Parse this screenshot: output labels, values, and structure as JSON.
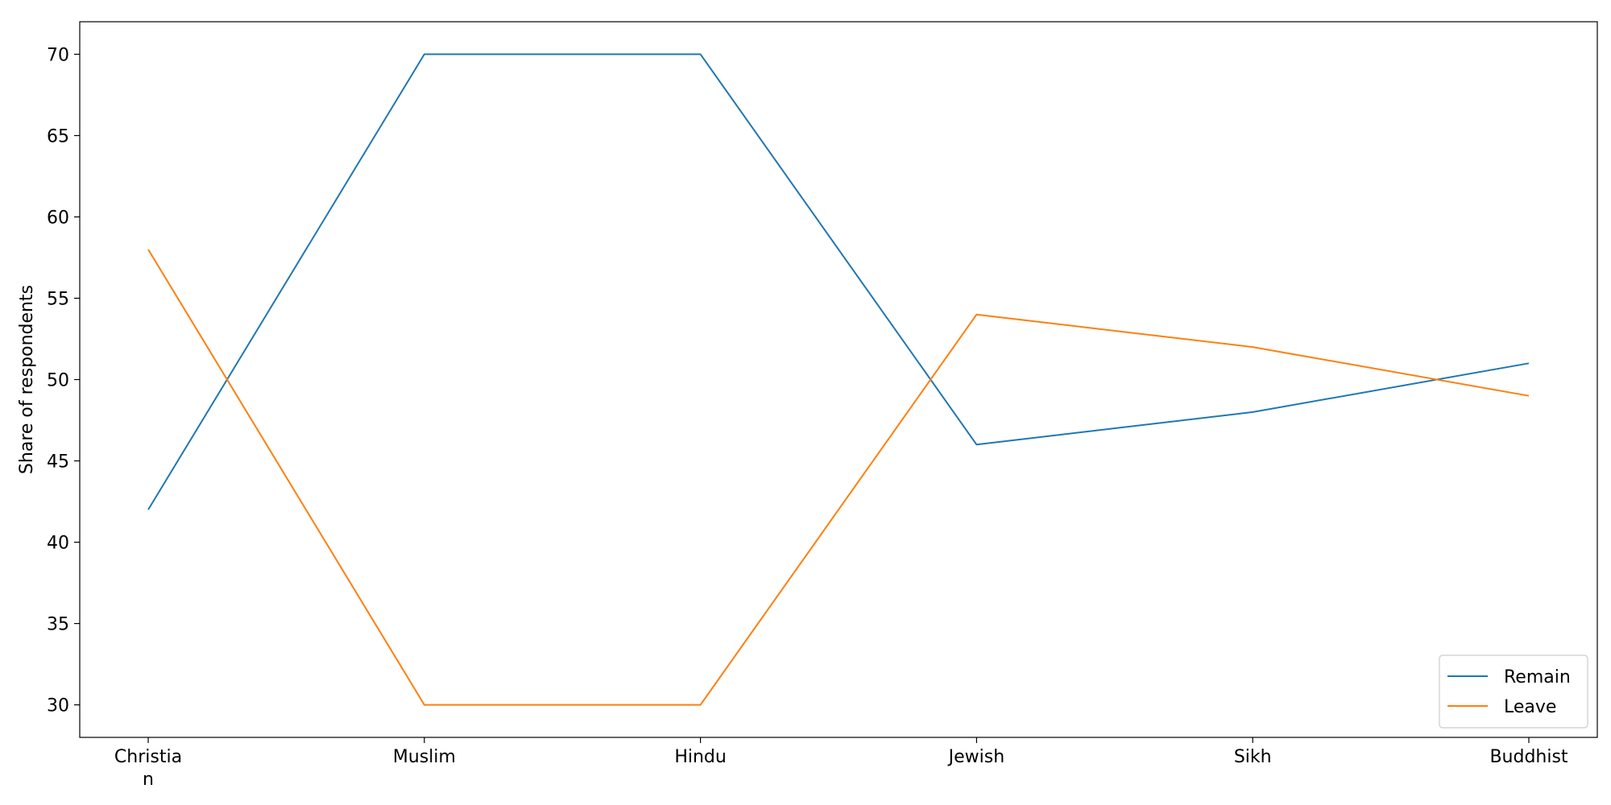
{
  "chart_data": {
    "type": "line",
    "categories": [
      "Christia\nn",
      "Muslim",
      "Hindu",
      "Jewish",
      "Sikh",
      "Buddhist"
    ],
    "series": [
      {
        "name": "Remain",
        "values": [
          42,
          70,
          70,
          46,
          48,
          51
        ],
        "color": "#1f77b4"
      },
      {
        "name": "Leave",
        "values": [
          58,
          30,
          30,
          54,
          52,
          49
        ],
        "color": "#ff7f0e"
      }
    ],
    "title": "",
    "xlabel": "",
    "ylabel": "Share of respondents",
    "ylim": [
      28,
      72
    ],
    "yticks": [
      30,
      35,
      40,
      45,
      50,
      55,
      60,
      65,
      70
    ],
    "grid": false,
    "legend_position": "bottom-right"
  }
}
